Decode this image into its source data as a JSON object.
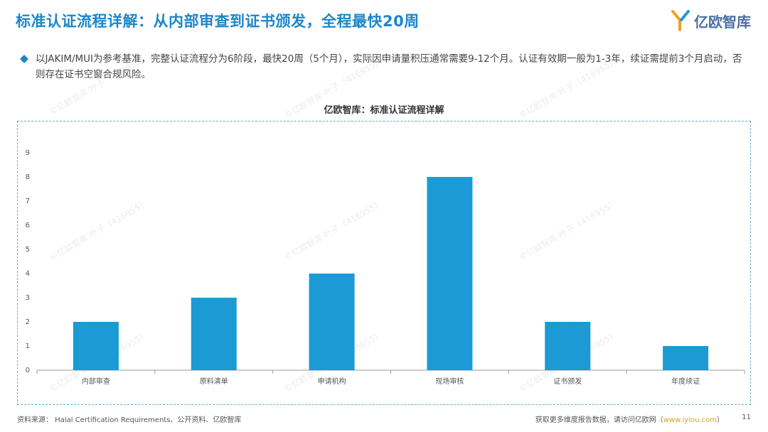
{
  "header": {
    "title": "标准认证流程详解：从内部审查到证书颁发，全程最快20周",
    "logo_text": "亿欧智库"
  },
  "summary": {
    "text": "以JAKIM/MUI为参考基准，完整认证流程分为6阶段，最快20周（5个月），实际因申请量积压通常需要9-12个月。认证有效期一般为1-3年，续证需提前3个月启动，否则存在证书空窗合规风险。"
  },
  "watermark": "©亿欧智库·叶子（416955）",
  "colors": {
    "accent": "#1b86c9",
    "bar": "#1b9ad6",
    "border": "#5fb0c5",
    "link": "#d8a11a"
  },
  "chart_data": {
    "type": "bar",
    "title": "亿欧智库：标准认证流程详解",
    "categories": [
      "内部审查",
      "原料清单",
      "申请机构",
      "现场审核",
      "证书颁发",
      "年度续证"
    ],
    "values": [
      2,
      3,
      4,
      8,
      2,
      1
    ],
    "yticks": [
      "0",
      "1",
      "2",
      "3",
      "4",
      "5",
      "6",
      "7",
      "8",
      "9"
    ],
    "ylim": [
      0,
      9
    ],
    "xlabel": "",
    "ylabel": "",
    "grid": false
  },
  "footer": {
    "source": "资料来源： Halal Certification Requirements、公开资料、亿欧智库",
    "more_prefix": "获取更多维度报告数据，请访问亿欧网（",
    "more_link": "www.iyiou.com",
    "more_suffix": "）",
    "page_number": "11"
  }
}
